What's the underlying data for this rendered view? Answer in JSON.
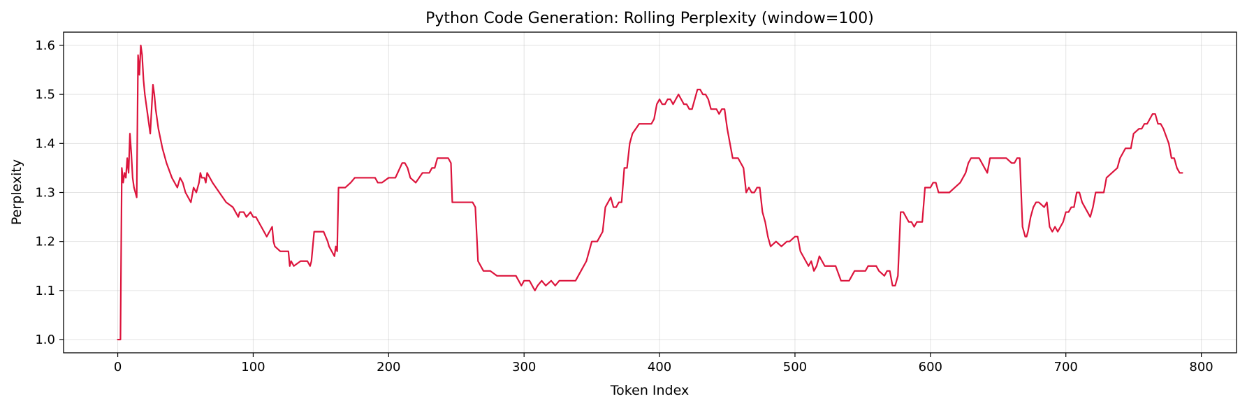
{
  "chart_data": {
    "type": "line",
    "title": "Python Code Generation: Rolling Perplexity (window=100)",
    "xlabel": "Token Index",
    "ylabel": "Perplexity",
    "xlim": [
      -40,
      826
    ],
    "ylim": [
      0.973,
      1.627
    ],
    "xticks": [
      0,
      100,
      200,
      300,
      400,
      500,
      600,
      700,
      800
    ],
    "yticks": [
      1.0,
      1.1,
      1.2,
      1.3,
      1.4,
      1.5,
      1.6
    ],
    "grid": true,
    "line_color": "#dc143c",
    "series": [
      {
        "x": [
          0,
          2,
          3,
          4,
          5,
          6,
          7,
          8,
          9,
          10,
          11,
          12,
          13,
          14,
          15,
          16,
          17,
          18,
          19,
          20,
          22,
          24,
          26,
          27,
          28,
          30,
          33,
          36,
          40,
          44,
          46,
          48,
          50,
          52,
          54,
          56,
          58,
          60,
          61,
          62,
          64,
          65,
          66,
          70,
          75,
          80,
          85,
          89,
          90,
          93,
          95,
          98,
          100,
          102,
          104,
          106,
          108,
          110,
          112,
          114,
          115,
          116,
          120,
          124,
          126,
          127,
          128,
          130,
          135,
          140,
          142,
          143,
          145,
          148,
          152,
          155,
          156,
          158,
          160,
          161,
          162,
          163,
          165,
          166,
          168,
          172,
          175,
          180,
          190,
          192,
          195,
          200,
          205,
          210,
          212,
          214,
          216,
          220,
          225,
          230,
          232,
          234,
          236,
          240,
          244,
          246,
          247,
          262,
          264,
          266,
          270,
          275,
          280,
          285,
          290,
          294,
          296,
          298,
          300,
          304,
          306,
          308,
          310,
          313,
          316,
          320,
          323,
          326,
          330,
          334,
          336,
          338,
          342,
          346,
          350,
          354,
          356,
          358,
          360,
          362,
          364,
          366,
          368,
          370,
          372,
          374,
          376,
          378,
          380,
          385,
          390,
          394,
          396,
          398,
          400,
          402,
          404,
          406,
          408,
          410,
          412,
          414,
          416,
          418,
          420,
          422,
          424,
          426,
          428,
          430,
          432,
          434,
          436,
          438,
          440,
          442,
          444,
          446,
          448,
          450,
          452,
          454,
          456,
          458,
          460,
          462,
          464,
          466,
          468,
          470,
          472,
          474,
          476,
          478,
          480,
          482,
          486,
          490,
          494,
          496,
          500,
          502,
          504,
          506,
          508,
          510,
          512,
          514,
          516,
          518,
          520,
          522,
          526,
          530,
          534,
          536,
          538,
          540,
          544,
          548,
          552,
          554,
          556,
          558,
          560,
          562,
          566,
          568,
          570,
          572,
          574,
          576,
          578,
          580,
          584,
          586,
          588,
          590,
          592,
          594,
          596,
          598,
          600,
          602,
          604,
          606,
          608,
          610,
          614,
          618,
          622,
          624,
          626,
          628,
          630,
          632,
          634,
          636,
          640,
          642,
          644,
          646,
          648,
          650,
          652,
          656,
          660,
          662,
          664,
          666,
          668,
          670,
          671,
          672,
          674,
          676,
          678,
          680,
          684,
          686,
          688,
          690,
          692,
          694,
          696,
          698,
          700,
          702,
          704,
          706,
          708,
          710,
          712,
          714,
          716,
          718,
          720,
          722,
          724,
          726,
          728,
          730,
          734,
          738,
          740,
          742,
          744,
          746,
          748,
          750,
          754,
          756,
          758,
          760,
          762,
          764,
          766,
          768,
          770,
          772,
          776,
          778,
          780,
          782,
          784,
          786
        ],
        "y": [
          1.0,
          1.0,
          1.35,
          1.32,
          1.34,
          1.33,
          1.37,
          1.34,
          1.42,
          1.38,
          1.33,
          1.31,
          1.3,
          1.29,
          1.58,
          1.54,
          1.6,
          1.58,
          1.53,
          1.5,
          1.46,
          1.42,
          1.52,
          1.5,
          1.47,
          1.43,
          1.39,
          1.36,
          1.33,
          1.31,
          1.33,
          1.32,
          1.3,
          1.29,
          1.28,
          1.31,
          1.3,
          1.32,
          1.34,
          1.33,
          1.33,
          1.32,
          1.34,
          1.32,
          1.3,
          1.28,
          1.27,
          1.25,
          1.26,
          1.26,
          1.25,
          1.26,
          1.25,
          1.25,
          1.24,
          1.23,
          1.22,
          1.21,
          1.22,
          1.23,
          1.2,
          1.19,
          1.18,
          1.18,
          1.18,
          1.15,
          1.16,
          1.15,
          1.16,
          1.16,
          1.15,
          1.16,
          1.22,
          1.22,
          1.22,
          1.2,
          1.19,
          1.18,
          1.17,
          1.19,
          1.18,
          1.31,
          1.31,
          1.31,
          1.31,
          1.32,
          1.33,
          1.33,
          1.33,
          1.32,
          1.32,
          1.33,
          1.33,
          1.36,
          1.36,
          1.35,
          1.33,
          1.32,
          1.34,
          1.34,
          1.35,
          1.35,
          1.37,
          1.37,
          1.37,
          1.36,
          1.28,
          1.28,
          1.27,
          1.16,
          1.14,
          1.14,
          1.13,
          1.13,
          1.13,
          1.13,
          1.12,
          1.11,
          1.12,
          1.12,
          1.11,
          1.1,
          1.11,
          1.12,
          1.11,
          1.12,
          1.11,
          1.12,
          1.12,
          1.12,
          1.12,
          1.12,
          1.14,
          1.16,
          1.2,
          1.2,
          1.21,
          1.22,
          1.27,
          1.28,
          1.29,
          1.27,
          1.27,
          1.28,
          1.28,
          1.35,
          1.35,
          1.4,
          1.42,
          1.44,
          1.44,
          1.44,
          1.45,
          1.48,
          1.49,
          1.48,
          1.48,
          1.49,
          1.49,
          1.48,
          1.49,
          1.5,
          1.49,
          1.48,
          1.48,
          1.47,
          1.47,
          1.49,
          1.51,
          1.51,
          1.5,
          1.5,
          1.49,
          1.47,
          1.47,
          1.47,
          1.46,
          1.47,
          1.47,
          1.43,
          1.4,
          1.37,
          1.37,
          1.37,
          1.36,
          1.35,
          1.3,
          1.31,
          1.3,
          1.3,
          1.31,
          1.31,
          1.26,
          1.24,
          1.21,
          1.19,
          1.2,
          1.19,
          1.2,
          1.2,
          1.21,
          1.21,
          1.18,
          1.17,
          1.16,
          1.15,
          1.16,
          1.14,
          1.15,
          1.17,
          1.16,
          1.15,
          1.15,
          1.15,
          1.12,
          1.12,
          1.12,
          1.12,
          1.14,
          1.14,
          1.14,
          1.15,
          1.15,
          1.15,
          1.15,
          1.14,
          1.13,
          1.14,
          1.14,
          1.11,
          1.11,
          1.13,
          1.26,
          1.26,
          1.24,
          1.24,
          1.23,
          1.24,
          1.24,
          1.24,
          1.31,
          1.31,
          1.31,
          1.32,
          1.32,
          1.3,
          1.3,
          1.3,
          1.3,
          1.31,
          1.32,
          1.33,
          1.34,
          1.36,
          1.37,
          1.37,
          1.37,
          1.37,
          1.35,
          1.34,
          1.37,
          1.37,
          1.37,
          1.37,
          1.37,
          1.37,
          1.36,
          1.36,
          1.37,
          1.37,
          1.23,
          1.21,
          1.21,
          1.22,
          1.25,
          1.27,
          1.28,
          1.28,
          1.27,
          1.28,
          1.23,
          1.22,
          1.23,
          1.22,
          1.23,
          1.24,
          1.26,
          1.26,
          1.27,
          1.27,
          1.3,
          1.3,
          1.28,
          1.27,
          1.26,
          1.25,
          1.27,
          1.3,
          1.3,
          1.3,
          1.3,
          1.33,
          1.34,
          1.35,
          1.37,
          1.38,
          1.39,
          1.39,
          1.39,
          1.42,
          1.43,
          1.43,
          1.44,
          1.44,
          1.45,
          1.46,
          1.46,
          1.44,
          1.44,
          1.43,
          1.4,
          1.37,
          1.37,
          1.35,
          1.34,
          1.34
        ]
      }
    ]
  }
}
